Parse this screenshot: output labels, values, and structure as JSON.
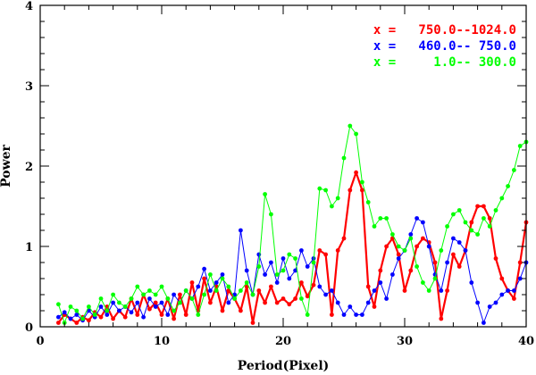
{
  "chart_data": {
    "type": "line",
    "title": "",
    "xlabel": "Period(Pixel)",
    "ylabel": "Power",
    "xlim": [
      0,
      40
    ],
    "ylim": [
      0,
      4
    ],
    "x_major_ticks": [
      0,
      10,
      20,
      30,
      40
    ],
    "x_major_tick_labels": [
      "0",
      "10",
      "20",
      "30",
      "40"
    ],
    "y_major_ticks": [
      0,
      1,
      2,
      3,
      4
    ],
    "y_major_tick_labels": [
      "0",
      "1",
      "2",
      "3",
      "4"
    ],
    "x_minor_step": 2,
    "y_minor_step": 0.2,
    "grid": false,
    "legend_position": "top-right",
    "series": [
      {
        "name": "x =   750.0--1024.0",
        "color": "#ff0000",
        "x": [
          1.5,
          2.0,
          2.5,
          3.0,
          3.5,
          4.0,
          4.5,
          5.0,
          5.5,
          6.0,
          6.5,
          7.0,
          7.5,
          8.0,
          8.5,
          9.0,
          9.5,
          10.0,
          10.5,
          11.0,
          11.5,
          12.0,
          12.5,
          13.0,
          13.5,
          14.0,
          14.5,
          15.0,
          15.5,
          16.0,
          16.5,
          17.0,
          17.5,
          18.0,
          18.5,
          19.0,
          19.5,
          20.0,
          20.5,
          21.0,
          21.5,
          22.0,
          22.5,
          23.0,
          23.5,
          24.0,
          24.5,
          25.0,
          25.5,
          26.0,
          26.5,
          27.0,
          27.5,
          28.0,
          28.5,
          29.0,
          29.5,
          30.0,
          30.5,
          31.0,
          31.5,
          32.0,
          32.5,
          33.0,
          33.5,
          34.0,
          34.5,
          35.0,
          35.5,
          36.0,
          36.5,
          37.0,
          37.5,
          38.0,
          38.5,
          39.0,
          39.5,
          40.0
        ],
        "y": [
          0.05,
          0.15,
          0.1,
          0.05,
          0.12,
          0.08,
          0.18,
          0.12,
          0.25,
          0.1,
          0.2,
          0.12,
          0.35,
          0.15,
          0.4,
          0.22,
          0.3,
          0.15,
          0.35,
          0.1,
          0.4,
          0.15,
          0.55,
          0.2,
          0.6,
          0.3,
          0.5,
          0.2,
          0.45,
          0.35,
          0.2,
          0.5,
          0.05,
          0.45,
          0.3,
          0.5,
          0.3,
          0.35,
          0.28,
          0.35,
          0.55,
          0.38,
          0.52,
          0.95,
          0.9,
          0.15,
          0.95,
          1.1,
          1.7,
          1.92,
          1.7,
          0.5,
          0.25,
          0.7,
          1.0,
          1.1,
          0.9,
          0.45,
          0.7,
          1.0,
          1.1,
          1.05,
          0.8,
          0.1,
          0.45,
          0.9,
          0.75,
          0.95,
          1.3,
          1.5,
          1.5,
          1.35,
          0.85,
          0.6,
          0.45,
          0.35,
          0.8,
          1.3
        ]
      },
      {
        "name": "x =   460.0-- 750.0",
        "color": "#0000ff",
        "x": [
          1.5,
          2.0,
          2.5,
          3.0,
          3.5,
          4.0,
          4.5,
          5.0,
          5.5,
          6.0,
          6.5,
          7.0,
          7.5,
          8.0,
          8.5,
          9.0,
          9.5,
          10.0,
          10.5,
          11.0,
          11.5,
          12.0,
          12.5,
          13.0,
          13.5,
          14.0,
          14.5,
          15.0,
          15.5,
          16.0,
          16.5,
          17.0,
          17.5,
          18.0,
          18.5,
          19.0,
          19.5,
          20.0,
          20.5,
          21.0,
          21.5,
          22.0,
          22.5,
          23.0,
          23.5,
          24.0,
          24.5,
          25.0,
          25.5,
          26.0,
          26.5,
          27.0,
          27.5,
          28.0,
          28.5,
          29.0,
          29.5,
          30.0,
          30.5,
          31.0,
          31.5,
          32.0,
          32.5,
          33.0,
          33.5,
          34.0,
          34.5,
          35.0,
          35.5,
          36.0,
          36.5,
          37.0,
          37.5,
          38.0,
          38.5,
          39.0,
          39.5,
          40.0
        ],
        "y": [
          0.12,
          0.18,
          0.1,
          0.15,
          0.08,
          0.2,
          0.12,
          0.25,
          0.15,
          0.3,
          0.2,
          0.25,
          0.18,
          0.3,
          0.12,
          0.35,
          0.25,
          0.3,
          0.15,
          0.4,
          0.3,
          0.45,
          0.35,
          0.5,
          0.72,
          0.45,
          0.55,
          0.65,
          0.3,
          0.4,
          1.2,
          0.7,
          0.4,
          0.9,
          0.65,
          0.8,
          0.55,
          0.85,
          0.6,
          0.7,
          0.95,
          0.75,
          0.85,
          0.5,
          0.4,
          0.45,
          0.3,
          0.15,
          0.25,
          0.15,
          0.15,
          0.3,
          0.45,
          0.55,
          0.35,
          0.65,
          0.85,
          0.95,
          1.15,
          1.35,
          1.3,
          1.0,
          0.65,
          0.45,
          0.8,
          1.1,
          1.05,
          0.95,
          0.55,
          0.3,
          0.05,
          0.25,
          0.3,
          0.4,
          0.45,
          0.45,
          0.6,
          0.8
        ]
      },
      {
        "name": "x =     1.0-- 300.0",
        "color": "#00ff00",
        "x": [
          1.5,
          2.0,
          2.5,
          3.0,
          3.5,
          4.0,
          4.5,
          5.0,
          5.5,
          6.0,
          6.5,
          7.0,
          7.5,
          8.0,
          8.5,
          9.0,
          9.5,
          10.0,
          10.5,
          11.0,
          11.5,
          12.0,
          12.5,
          13.0,
          13.5,
          14.0,
          14.5,
          15.0,
          15.5,
          16.0,
          16.5,
          17.0,
          17.5,
          18.0,
          18.5,
          19.0,
          19.5,
          20.0,
          20.5,
          21.0,
          21.5,
          22.0,
          22.5,
          23.0,
          23.5,
          24.0,
          24.5,
          25.0,
          25.5,
          26.0,
          26.5,
          27.0,
          27.5,
          28.0,
          28.5,
          29.0,
          29.5,
          30.0,
          30.5,
          31.0,
          31.5,
          32.0,
          32.5,
          33.0,
          33.5,
          34.0,
          34.5,
          35.0,
          35.5,
          36.0,
          36.5,
          37.0,
          37.5,
          38.0,
          38.5,
          39.0,
          39.5,
          40.0
        ],
        "y": [
          0.28,
          0.05,
          0.25,
          0.2,
          0.1,
          0.25,
          0.15,
          0.35,
          0.2,
          0.4,
          0.3,
          0.25,
          0.35,
          0.5,
          0.4,
          0.45,
          0.4,
          0.5,
          0.35,
          0.2,
          0.3,
          0.45,
          0.35,
          0.15,
          0.4,
          0.65,
          0.45,
          0.6,
          0.5,
          0.35,
          0.45,
          0.55,
          0.4,
          0.75,
          1.65,
          1.4,
          0.65,
          0.7,
          0.9,
          0.85,
          0.35,
          0.15,
          0.8,
          1.72,
          1.7,
          1.5,
          1.6,
          2.1,
          2.5,
          2.4,
          1.8,
          1.55,
          1.25,
          1.35,
          1.35,
          1.15,
          1.0,
          0.95,
          1.1,
          0.75,
          0.55,
          0.45,
          0.6,
          0.95,
          1.25,
          1.4,
          1.45,
          1.3,
          1.2,
          1.15,
          1.35,
          1.25,
          1.45,
          1.6,
          1.75,
          1.95,
          2.25,
          2.3
        ]
      }
    ]
  }
}
